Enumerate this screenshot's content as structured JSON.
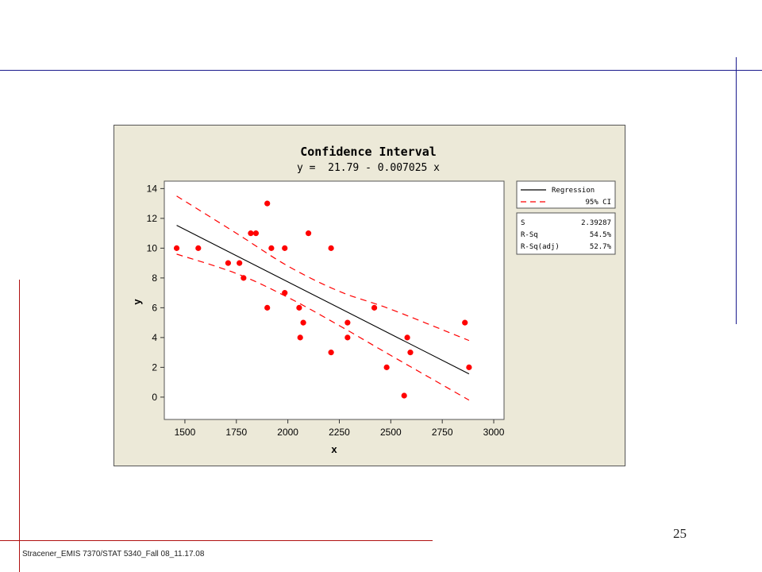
{
  "slide": {
    "page_number": "25",
    "footer": "Stracener_EMIS 7370/STAT 5340_Fall 08_11.17.08"
  },
  "colors": {
    "top_rule": "#1a1a8c",
    "left_rule": "#b01010",
    "panel_bg": "#ece9d8",
    "point": "#ff0000",
    "ci_line": "#ff0000",
    "regression_line": "#000000"
  },
  "chart_data": {
    "type": "scatter",
    "title": "Confidence Interval",
    "subtitle": "y =  21.79 - 0.007025 x",
    "xlabel": "x",
    "ylabel": "y",
    "xlim": [
      1400,
      3050
    ],
    "ylim": [
      -1.5,
      14.5
    ],
    "xticks": [
      1500,
      1750,
      2000,
      2250,
      2500,
      2750,
      3000
    ],
    "yticks": [
      0,
      2,
      4,
      6,
      8,
      10,
      12,
      14
    ],
    "grid": false,
    "points": [
      {
        "x": 1460,
        "y": 10
      },
      {
        "x": 1565,
        "y": 10
      },
      {
        "x": 1710,
        "y": 9
      },
      {
        "x": 1765,
        "y": 9
      },
      {
        "x": 1785,
        "y": 8
      },
      {
        "x": 1820,
        "y": 11
      },
      {
        "x": 1845,
        "y": 11
      },
      {
        "x": 1900,
        "y": 13
      },
      {
        "x": 1900,
        "y": 6
      },
      {
        "x": 1920,
        "y": 10
      },
      {
        "x": 1985,
        "y": 10
      },
      {
        "x": 1985,
        "y": 7
      },
      {
        "x": 2055,
        "y": 6
      },
      {
        "x": 2060,
        "y": 4
      },
      {
        "x": 2075,
        "y": 5
      },
      {
        "x": 2100,
        "y": 11
      },
      {
        "x": 2210,
        "y": 10
      },
      {
        "x": 2210,
        "y": 3
      },
      {
        "x": 2290,
        "y": 5
      },
      {
        "x": 2290,
        "y": 4
      },
      {
        "x": 2420,
        "y": 6
      },
      {
        "x": 2480,
        "y": 2
      },
      {
        "x": 2565,
        "y": 0.1
      },
      {
        "x": 2580,
        "y": 4
      },
      {
        "x": 2595,
        "y": 3
      },
      {
        "x": 2860,
        "y": 5
      },
      {
        "x": 2880,
        "y": 2
      }
    ],
    "regression": {
      "intercept": 21.79,
      "slope": -0.007025,
      "x_range": [
        1460,
        2880
      ]
    },
    "ci_upper": [
      {
        "x": 1460,
        "y": 13.5
      },
      {
        "x": 1750,
        "y": 11.0
      },
      {
        "x": 2000,
        "y": 8.8
      },
      {
        "x": 2250,
        "y": 7.1
      },
      {
        "x": 2500,
        "y": 5.9
      },
      {
        "x": 2880,
        "y": 3.8
      }
    ],
    "ci_lower": [
      {
        "x": 1460,
        "y": 9.6
      },
      {
        "x": 1750,
        "y": 8.3
      },
      {
        "x": 2000,
        "y": 6.7
      },
      {
        "x": 2250,
        "y": 4.8
      },
      {
        "x": 2500,
        "y": 2.8
      },
      {
        "x": 2880,
        "y": -0.2
      }
    ],
    "legend": {
      "placement": "top-right",
      "entries": [
        {
          "label": "Regression",
          "style": "solid",
          "color": "#000000"
        },
        {
          "label": "95% CI",
          "style": "dashed",
          "color": "#ff0000"
        }
      ]
    },
    "stats": [
      {
        "label": "S",
        "value": "2.39287"
      },
      {
        "label": "R-Sq",
        "value": "54.5%"
      },
      {
        "label": "R-Sq(adj)",
        "value": "52.7%"
      }
    ]
  }
}
